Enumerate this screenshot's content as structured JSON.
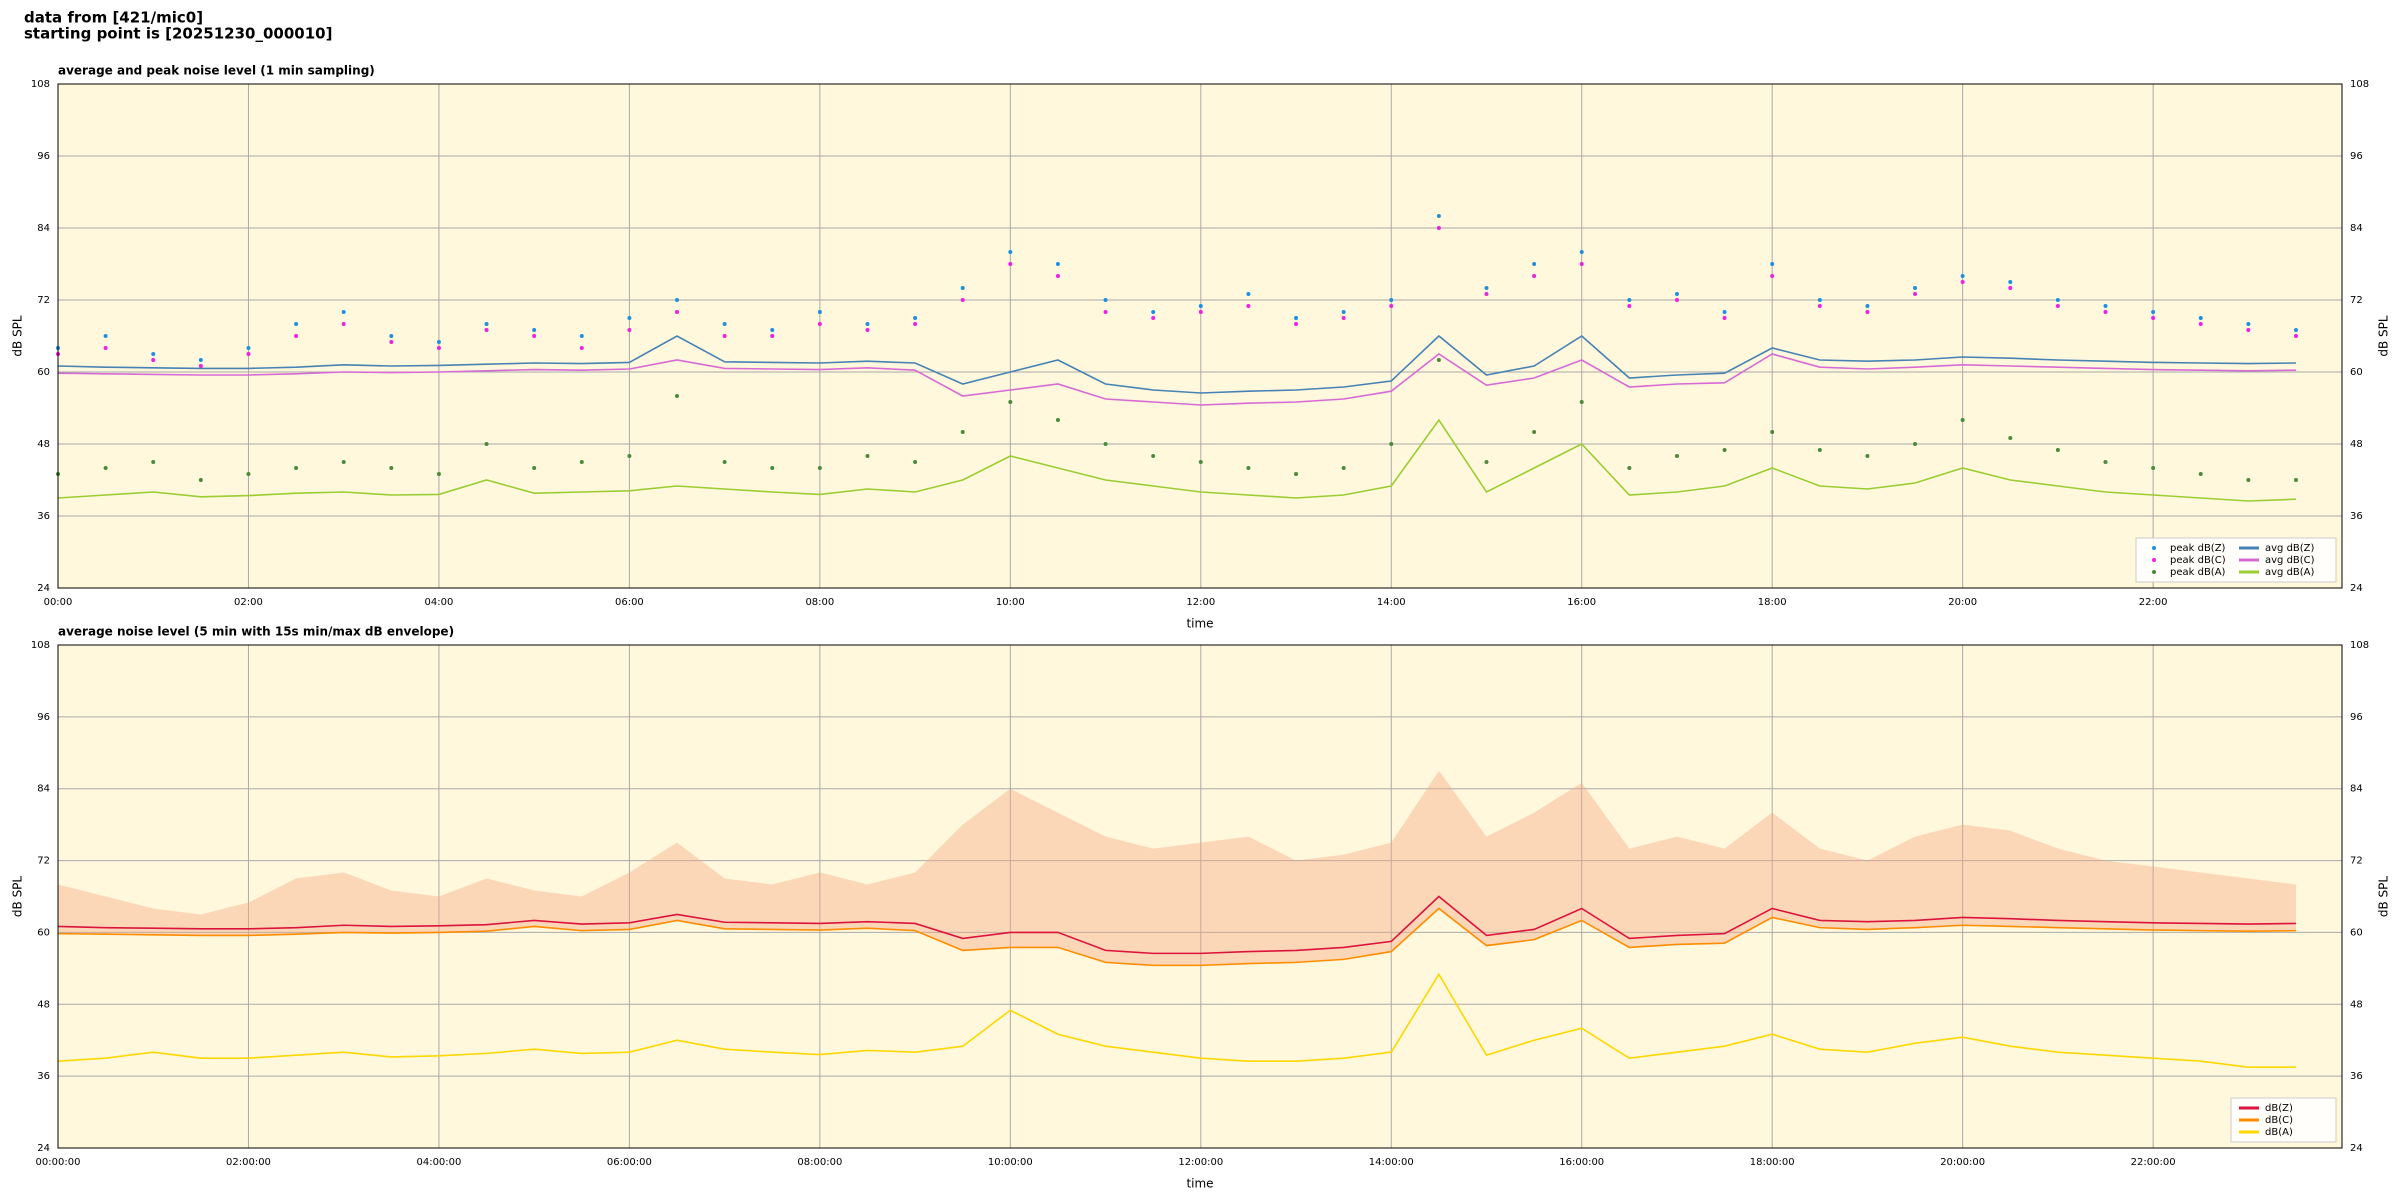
{
  "header": {
    "lines": [
      "data from [421/mic0]",
      "starting point is [20251230_000010]"
    ]
  },
  "chart_data": [
    {
      "type": "line",
      "title": "average and peak noise level (1 min sampling)",
      "x_label": "time",
      "y_label": "dB SPL",
      "x": [
        "00:00",
        "00:30",
        "01:00",
        "01:30",
        "02:00",
        "02:30",
        "03:00",
        "03:30",
        "04:00",
        "04:30",
        "05:00",
        "05:30",
        "06:00",
        "06:30",
        "07:00",
        "07:30",
        "08:00",
        "08:30",
        "09:00",
        "09:30",
        "10:00",
        "10:30",
        "11:00",
        "11:30",
        "12:00",
        "12:30",
        "13:00",
        "13:30",
        "14:00",
        "14:30",
        "15:00",
        "15:30",
        "16:00",
        "16:30",
        "17:00",
        "17:30",
        "18:00",
        "18:30",
        "19:00",
        "19:30",
        "20:00",
        "20:30",
        "21:00",
        "21:30",
        "22:00",
        "22:30",
        "23:00",
        "23:30"
      ],
      "xlim": [
        "00:00",
        "23:59"
      ],
      "xticks": [
        "00:00",
        "02:00",
        "04:00",
        "06:00",
        "08:00",
        "10:00",
        "12:00",
        "14:00",
        "16:00",
        "18:00",
        "20:00",
        "22:00"
      ],
      "ylim": [
        24,
        108
      ],
      "yticks": [
        24,
        36,
        48,
        60,
        72,
        84,
        96,
        108
      ],
      "grid": true,
      "legend": "lower right",
      "series": [
        {
          "name": "peak dB(Z)",
          "style": "dots",
          "color": "#1f8fe0",
          "values": [
            64,
            66,
            63,
            62,
            64,
            68,
            70,
            66,
            65,
            68,
            67,
            66,
            69,
            72,
            68,
            67,
            70,
            68,
            69,
            74,
            80,
            78,
            72,
            70,
            71,
            73,
            69,
            70,
            72,
            86,
            74,
            78,
            80,
            72,
            73,
            70,
            78,
            72,
            71,
            74,
            76,
            75,
            72,
            71,
            70,
            69,
            68,
            67
          ]
        },
        {
          "name": "peak dB(C)",
          "style": "dots",
          "color": "#f020e0",
          "values": [
            63,
            64,
            62,
            61,
            63,
            66,
            68,
            65,
            64,
            67,
            66,
            64,
            67,
            70,
            66,
            66,
            68,
            67,
            68,
            72,
            78,
            76,
            70,
            69,
            70,
            71,
            68,
            69,
            71,
            84,
            73,
            76,
            78,
            71,
            72,
            69,
            76,
            71,
            70,
            73,
            75,
            74,
            71,
            70,
            69,
            68,
            67,
            66
          ]
        },
        {
          "name": "peak dB(A)",
          "style": "dots",
          "color": "#4a8a3a",
          "values": [
            43,
            44,
            45,
            42,
            43,
            44,
            45,
            44,
            43,
            48,
            44,
            45,
            46,
            56,
            45,
            44,
            44,
            46,
            45,
            50,
            55,
            52,
            48,
            46,
            45,
            44,
            43,
            44,
            48,
            62,
            45,
            50,
            55,
            44,
            46,
            47,
            50,
            47,
            46,
            48,
            52,
            49,
            47,
            45,
            44,
            43,
            42,
            42
          ]
        },
        {
          "name": "avg dB(Z)",
          "style": "line",
          "color": "#4682b4",
          "values": [
            61,
            60.8,
            60.7,
            60.6,
            60.6,
            60.8,
            61.2,
            61,
            61.1,
            61.3,
            61.5,
            61.4,
            61.6,
            66,
            61.7,
            61.6,
            61.5,
            61.8,
            61.5,
            58,
            60,
            62,
            58,
            57,
            56.5,
            56.8,
            57,
            57.5,
            58.5,
            66,
            59.5,
            61,
            66,
            59,
            59.5,
            59.8,
            64,
            62,
            61.8,
            62,
            62.5,
            62.3,
            62,
            61.8,
            61.6,
            61.5,
            61.4,
            61.5
          ]
        },
        {
          "name": "avg dB(C)",
          "style": "line",
          "color": "#d86ad6",
          "values": [
            59.8,
            59.7,
            59.6,
            59.5,
            59.5,
            59.7,
            60,
            59.9,
            60,
            60.2,
            60.4,
            60.3,
            60.5,
            62,
            60.6,
            60.5,
            60.4,
            60.7,
            60.3,
            56,
            57,
            58,
            55.5,
            55,
            54.5,
            54.8,
            55,
            55.5,
            56.8,
            63,
            57.8,
            59,
            62,
            57.5,
            58,
            58.2,
            63,
            60.8,
            60.5,
            60.8,
            61.2,
            61,
            60.8,
            60.6,
            60.4,
            60.3,
            60.2,
            60.3
          ]
        },
        {
          "name": "avg dB(A)",
          "style": "line",
          "color": "#9acd32",
          "values": [
            39,
            39.5,
            40,
            39.2,
            39.4,
            39.8,
            40,
            39.5,
            39.6,
            42,
            39.8,
            40,
            40.2,
            41,
            40.5,
            40,
            39.6,
            40.5,
            40,
            42,
            46,
            44,
            42,
            41,
            40,
            39.5,
            39,
            39.5,
            41,
            52,
            40,
            44,
            48,
            39.5,
            40,
            41,
            44,
            41,
            40.5,
            41.5,
            44,
            42,
            41,
            40,
            39.5,
            39,
            38.5,
            38.8
          ]
        }
      ]
    },
    {
      "type": "line",
      "title": "average noise level (5 min with 15s min/max dB envelope)",
      "x_label": "time",
      "y_label": "dB SPL",
      "x": [
        "00:00",
        "00:30",
        "01:00",
        "01:30",
        "02:00",
        "02:30",
        "03:00",
        "03:30",
        "04:00",
        "04:30",
        "05:00",
        "05:30",
        "06:00",
        "06:30",
        "07:00",
        "07:30",
        "08:00",
        "08:30",
        "09:00",
        "09:30",
        "10:00",
        "10:30",
        "11:00",
        "11:30",
        "12:00",
        "12:30",
        "13:00",
        "13:30",
        "14:00",
        "14:30",
        "15:00",
        "15:30",
        "16:00",
        "16:30",
        "17:00",
        "17:30",
        "18:00",
        "18:30",
        "19:00",
        "19:30",
        "20:00",
        "20:30",
        "21:00",
        "21:30",
        "22:00",
        "22:30",
        "23:00",
        "23:30"
      ],
      "xlim": [
        "00:00:00",
        "23:59:00"
      ],
      "xticks": [
        "00:00:00",
        "02:00:00",
        "04:00:00",
        "06:00:00",
        "08:00:00",
        "10:00:00",
        "12:00:00",
        "14:00:00",
        "16:00:00",
        "18:00:00",
        "20:00:00",
        "22:00:00"
      ],
      "ylim": [
        24,
        108
      ],
      "yticks": [
        24,
        36,
        48,
        60,
        72,
        84,
        96,
        108
      ],
      "grid": true,
      "legend": "lower right",
      "envelope": {
        "color": "#f4a582",
        "values": [
          68,
          66,
          64,
          63,
          65,
          69,
          70,
          67,
          66,
          69,
          67,
          66,
          70,
          75,
          69,
          68,
          70,
          68,
          70,
          78,
          84,
          80,
          76,
          74,
          75,
          76,
          72,
          73,
          75,
          87,
          76,
          80,
          85,
          74,
          76,
          74,
          80,
          74,
          72,
          76,
          78,
          77,
          74,
          72,
          71,
          70,
          69,
          68
        ]
      },
      "series": [
        {
          "name": "dB(Z)",
          "style": "line",
          "color": "#dc143c",
          "values": [
            61,
            60.8,
            60.7,
            60.6,
            60.6,
            60.8,
            61.2,
            61,
            61.1,
            61.3,
            62,
            61.4,
            61.6,
            63,
            61.7,
            61.6,
            61.5,
            61.8,
            61.5,
            59,
            60,
            60,
            57,
            56.5,
            56.5,
            56.8,
            57,
            57.5,
            58.5,
            66,
            59.5,
            60.5,
            64,
            59,
            59.5,
            59.8,
            64,
            62,
            61.8,
            62,
            62.5,
            62.3,
            62,
            61.8,
            61.6,
            61.5,
            61.4,
            61.5
          ]
        },
        {
          "name": "dB(C)",
          "style": "line",
          "color": "#ff8c00",
          "values": [
            59.8,
            59.7,
            59.6,
            59.5,
            59.5,
            59.7,
            60,
            59.9,
            60,
            60.2,
            61,
            60.3,
            60.5,
            62,
            60.6,
            60.5,
            60.4,
            60.7,
            60.3,
            57,
            57.5,
            57.5,
            55,
            54.5,
            54.5,
            54.8,
            55,
            55.5,
            56.8,
            64,
            57.8,
            58.8,
            62,
            57.5,
            58,
            58.2,
            62.5,
            60.8,
            60.5,
            60.8,
            61.2,
            61,
            60.8,
            60.6,
            60.4,
            60.3,
            60.2,
            60.3
          ]
        },
        {
          "name": "dB(A)",
          "style": "line",
          "color": "#ffd700",
          "values": [
            38.5,
            39,
            40,
            39,
            39,
            39.5,
            40,
            39.2,
            39.4,
            39.8,
            40.5,
            39.8,
            40,
            42,
            40.5,
            40,
            39.6,
            40.3,
            40,
            41,
            47,
            43,
            41,
            40,
            39,
            38.5,
            38.5,
            39,
            40,
            53,
            39.5,
            42,
            44,
            39,
            40,
            41,
            43,
            40.5,
            40,
            41.5,
            42.5,
            41,
            40,
            39.5,
            39,
            38.5,
            37.5,
            37.5
          ]
        }
      ]
    }
  ]
}
